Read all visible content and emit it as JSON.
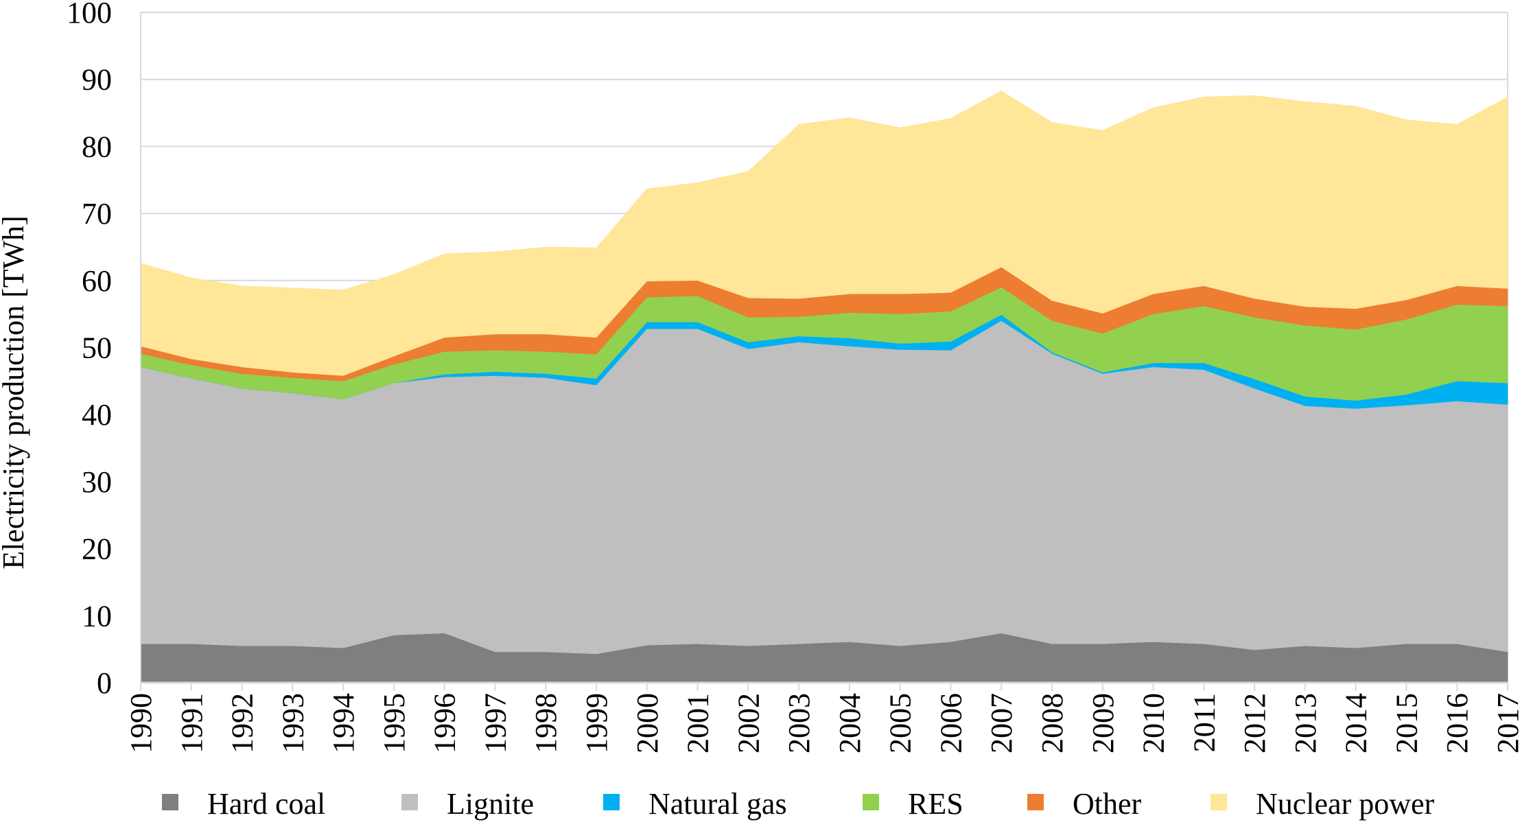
{
  "chart_data": {
    "type": "area",
    "stacked": true,
    "title": "",
    "xlabel": "",
    "ylabel": "Electricity production [TWh]",
    "ylim": [
      0,
      100
    ],
    "yticks": [
      0,
      10,
      20,
      30,
      40,
      50,
      60,
      70,
      80,
      90,
      100
    ],
    "grid": "horizontal",
    "legend": "bottom",
    "x": [
      "1990",
      "1991",
      "1992",
      "1993",
      "1994",
      "1995",
      "1996",
      "1997",
      "1998",
      "1999",
      "2000",
      "2001",
      "2002",
      "2003",
      "2004",
      "2005",
      "2006",
      "2007",
      "2008",
      "2009",
      "2010",
      "2011",
      "2012",
      "2013",
      "2014",
      "2015",
      "2016",
      "2017"
    ],
    "series": [
      {
        "name": "Hard coal",
        "color": "#7f7f7f",
        "values": [
          5.8,
          5.8,
          5.5,
          5.5,
          5.2,
          7.1,
          7.4,
          4.6,
          4.6,
          4.3,
          5.6,
          5.8,
          5.5,
          5.8,
          6.1,
          5.5,
          6.1,
          7.4,
          5.8,
          5.8,
          6.1,
          5.8,
          4.9,
          5.5,
          5.2,
          5.8,
          5.8,
          4.6
        ]
      },
      {
        "name": "Lignite",
        "color": "#bfbfbf",
        "values": [
          41.3,
          39.6,
          38.4,
          37.7,
          37.1,
          37.6,
          38.2,
          41.2,
          40.9,
          40.1,
          47.2,
          47.0,
          44.3,
          45.0,
          44.1,
          44.2,
          43.5,
          46.6,
          43.3,
          40.3,
          41.0,
          40.9,
          39.0,
          35.8,
          35.7,
          35.6,
          36.2,
          36.9
        ]
      },
      {
        "name": "Natural gas",
        "color": "#00b0f0",
        "values": [
          0.0,
          0.0,
          0.0,
          0.0,
          0.0,
          0.0,
          0.4,
          0.6,
          0.6,
          1.0,
          1.0,
          1.0,
          1.0,
          0.9,
          1.2,
          0.9,
          1.3,
          0.9,
          0.2,
          0.2,
          0.6,
          1.0,
          1.4,
          1.4,
          1.2,
          1.6,
          3.0,
          3.2
        ]
      },
      {
        "name": "RES",
        "color": "#92d050",
        "values": [
          2.0,
          2.0,
          2.2,
          2.3,
          2.7,
          2.8,
          3.4,
          3.2,
          3.3,
          3.6,
          3.7,
          3.9,
          3.7,
          2.9,
          3.8,
          4.4,
          4.5,
          4.1,
          4.7,
          5.8,
          7.3,
          8.5,
          9.2,
          10.6,
          10.6,
          11.2,
          11.4,
          11.5
        ]
      },
      {
        "name": "Other",
        "color": "#ed7d31",
        "values": [
          1.1,
          0.9,
          1.0,
          0.8,
          0.8,
          1.2,
          2.1,
          2.4,
          2.6,
          2.5,
          2.4,
          2.3,
          2.9,
          2.7,
          2.8,
          3.0,
          2.8,
          3.0,
          3.0,
          3.0,
          3.0,
          3.0,
          2.8,
          2.8,
          3.1,
          2.9,
          2.8,
          2.6
        ]
      },
      {
        "name": "Nuclear power",
        "color": "#ffe699",
        "values": [
          12.4,
          12.1,
          12.1,
          12.6,
          12.8,
          12.2,
          12.5,
          12.3,
          13.0,
          13.4,
          13.8,
          14.6,
          18.9,
          26.0,
          26.3,
          24.8,
          26.0,
          26.3,
          26.6,
          27.3,
          27.8,
          28.2,
          30.3,
          30.6,
          30.2,
          26.9,
          24.1,
          28.6
        ]
      }
    ]
  }
}
